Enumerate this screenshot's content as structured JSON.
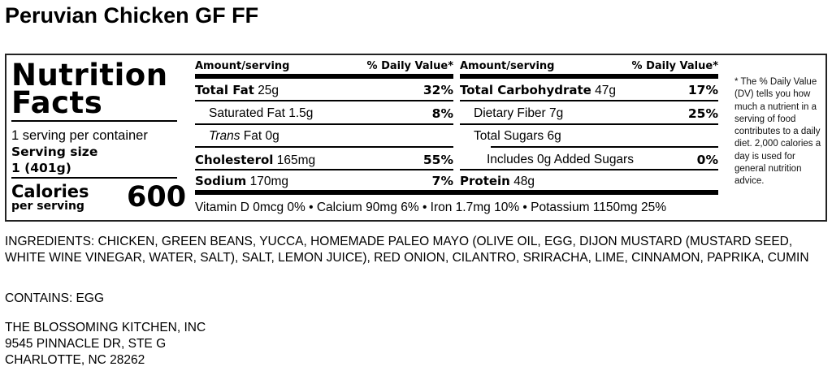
{
  "title": "Peruvian Chicken GF FF",
  "label": {
    "heading_line1": "Nutrition",
    "heading_line2": "Facts",
    "servings_per_container": "1 serving per container",
    "serving_size_label": "Serving size",
    "serving_size_value": "1 (401g)",
    "calories_label": "Calories",
    "calories_sub": "per serving",
    "calories_value": "600",
    "amount_header": "Amount/serving",
    "dv_header": "% Daily Value*",
    "left_rows": [
      {
        "name": "Total Fat",
        "amount": "25g",
        "dv": "32%"
      },
      {
        "name": "Saturated Fat",
        "amount": "1.5g",
        "dv": "8%"
      },
      {
        "name": "Trans",
        "suffix": "Fat 0g",
        "dv": ""
      },
      {
        "name": "Cholesterol",
        "amount": "165mg",
        "dv": "55%"
      },
      {
        "name": "Sodium",
        "amount": "170mg",
        "dv": "7%"
      }
    ],
    "right_rows": [
      {
        "name": "Total Carbohydrate",
        "amount": "47g",
        "dv": "17%"
      },
      {
        "name": "Dietary Fiber",
        "amount": "7g",
        "dv": "25%"
      },
      {
        "name": "Total Sugars",
        "amount": "6g",
        "dv": ""
      },
      {
        "name": "Includes 0g Added Sugars",
        "amount": "",
        "dv": "0%"
      },
      {
        "name": "Protein",
        "amount": "48g",
        "dv": ""
      }
    ],
    "vitamins": "Vitamin D 0mcg 0% • Calcium 90mg 6% • Iron 1.7mg 10% • Potassium 1150mg 25%",
    "footnote": "* The % Daily Value (DV) tells you how much a nutrient in a serving of food contributes to a daily diet. 2,000 calories a day is used for general nutrition advice."
  },
  "ingredients": "INGREDIENTS: CHICKEN, GREEN BEANS, YUCCA, HOMEMADE PALEO MAYO (OLIVE OIL, EGG, DIJON MUSTARD (MUSTARD SEED, WHITE WINE VINEGAR, WATER, SALT), SALT, LEMON JUICE), RED ONION, CILANTRO, SRIRACHA, LIME, CINNAMON, PAPRIKA, CUMIN",
  "contains": "CONTAINS: EGG",
  "address": [
    "THE BLOSSOMING KITCHEN, INC",
    "9545 PINNACLE DR, STE G",
    "CHARLOTTE, NC 28262"
  ]
}
